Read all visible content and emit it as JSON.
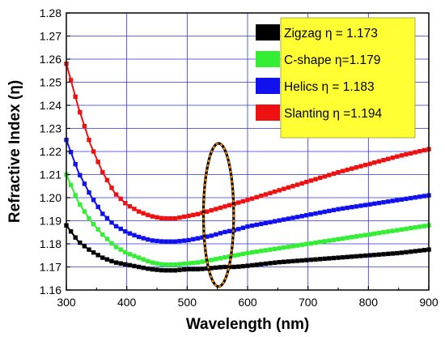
{
  "chart_data": {
    "type": "line",
    "xlabel": "Wavelength (nm)",
    "ylabel": "Refractive Index (η)",
    "xlim": [
      300,
      900
    ],
    "ylim": [
      1.16,
      1.28
    ],
    "xticks": [
      "300",
      "400",
      "500",
      "600",
      "700",
      "800",
      "900"
    ],
    "yticks": [
      "1.16",
      "1.17",
      "1.18",
      "1.19",
      "1.20",
      "1.21",
      "1.22",
      "1.23",
      "1.24",
      "1.25",
      "1.26",
      "1.27",
      "1.28"
    ],
    "grid": true,
    "legend_position": "top-right",
    "legend_background": "#FFFF33",
    "series": [
      {
        "name": "Zigzag η = 1.173",
        "color": "#000000",
        "x": [
          300,
          320,
          340,
          360,
          380,
          400,
          420,
          440,
          460,
          480,
          500,
          520,
          540,
          560,
          580,
          600,
          650,
          700,
          750,
          800,
          850,
          900
        ],
        "y": [
          1.188,
          1.181,
          1.177,
          1.174,
          1.172,
          1.171,
          1.17,
          1.169,
          1.1685,
          1.1685,
          1.169,
          1.169,
          1.1695,
          1.17,
          1.17,
          1.1705,
          1.172,
          1.173,
          1.174,
          1.175,
          1.176,
          1.1775
        ]
      },
      {
        "name": "C-shape η=1.179",
        "color": "#33EE33",
        "x": [
          300,
          320,
          340,
          360,
          380,
          400,
          420,
          440,
          460,
          480,
          500,
          520,
          540,
          560,
          580,
          600,
          650,
          700,
          750,
          800,
          850,
          900
        ],
        "y": [
          1.21,
          1.198,
          1.19,
          1.184,
          1.179,
          1.176,
          1.174,
          1.172,
          1.171,
          1.171,
          1.1715,
          1.172,
          1.173,
          1.174,
          1.175,
          1.176,
          1.178,
          1.18,
          1.182,
          1.184,
          1.186,
          1.188
        ]
      },
      {
        "name": "Helics η = 1.183",
        "color": "#1111EE",
        "x": [
          300,
          320,
          340,
          360,
          380,
          400,
          420,
          440,
          460,
          480,
          500,
          520,
          540,
          560,
          580,
          600,
          650,
          700,
          750,
          800,
          850,
          900
        ],
        "y": [
          1.225,
          1.211,
          1.201,
          1.193,
          1.188,
          1.185,
          1.183,
          1.1815,
          1.181,
          1.181,
          1.1815,
          1.1825,
          1.1835,
          1.185,
          1.186,
          1.1875,
          1.19,
          1.1925,
          1.195,
          1.197,
          1.199,
          1.201
        ]
      },
      {
        "name": "Slanting η =1.194",
        "color": "#EE1111",
        "x": [
          300,
          320,
          340,
          360,
          380,
          400,
          420,
          440,
          460,
          480,
          500,
          520,
          540,
          560,
          580,
          600,
          650,
          700,
          750,
          800,
          850,
          900
        ],
        "y": [
          1.258,
          1.239,
          1.223,
          1.211,
          1.202,
          1.197,
          1.194,
          1.192,
          1.191,
          1.191,
          1.192,
          1.193,
          1.1945,
          1.196,
          1.1975,
          1.199,
          1.203,
          1.207,
          1.211,
          1.2145,
          1.218,
          1.221
        ]
      }
    ],
    "annotation": {
      "type": "ellipse",
      "center_x": 552,
      "center_y": 1.1925,
      "radius_x": 25,
      "radius_y": 0.031,
      "fill": "#000000",
      "dash_color": "#FF8800"
    }
  }
}
